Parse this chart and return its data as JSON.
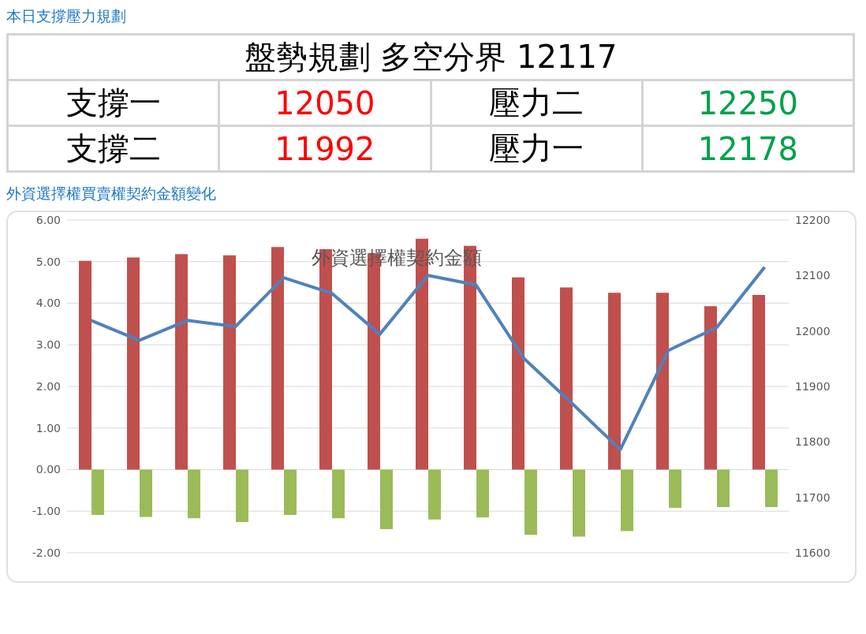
{
  "chart_data": [
    {
      "type": "other",
      "title": "本日支撐壓力規劃",
      "annotations": [
        "盤勢規劃 多空分界 12117",
        "支撐一",
        "12050",
        "壓力二",
        "12250",
        "支撐二",
        "11992",
        "壓力一",
        "12178"
      ],
      "colors": [
        "#000000",
        "#000000",
        "#ff0000",
        "#000000",
        "#00a14b",
        "#000000",
        "#ff0000",
        "#000000",
        "#00a14b"
      ]
    },
    {
      "type": "bar",
      "title": "外資選擇權買賣權契約金額變化",
      "subtitle": "外資選擇權契約金額",
      "categories": [
        null,
        null,
        null,
        null,
        null,
        null,
        null,
        null,
        null,
        null,
        null,
        null,
        null,
        null,
        null
      ],
      "series": [
        {
          "type": "bar",
          "color": "#c0504d",
          "values": [
            5.02,
            5.1,
            5.18,
            5.15,
            5.35,
            5.3,
            5.2,
            5.55,
            5.38,
            4.62,
            4.38,
            4.25,
            4.25,
            3.93,
            4.2
          ]
        },
        {
          "type": "bar",
          "color": "#9bbb59",
          "values": [
            -1.09,
            -1.14,
            -1.17,
            -1.26,
            -1.09,
            -1.17,
            -1.43,
            -1.2,
            -1.15,
            -1.57,
            -1.61,
            -1.48,
            -0.92,
            -0.9,
            -0.9
          ]
        },
        {
          "type": "line",
          "axis": "y2",
          "color": "#4f81bd",
          "values": [
            12019,
            11983,
            12019,
            12008,
            12096,
            12068,
            11994,
            12100,
            12083,
            11950,
            11869,
            11786,
            11965,
            12006,
            12115
          ]
        }
      ],
      "ylim": [
        -2,
        6
      ],
      "yticks": [
        {
          "value": -2,
          "label": "-2.00"
        },
        {
          "value": -1,
          "label": "-1.00"
        },
        {
          "value": 0,
          "label": "0.00"
        },
        {
          "value": 1,
          "label": "1.00"
        },
        {
          "value": 2,
          "label": "2.00"
        },
        {
          "value": 3,
          "label": "3.00"
        },
        {
          "value": 4,
          "label": "4.00"
        },
        {
          "value": 5,
          "label": "5.00"
        },
        {
          "value": 6,
          "label": "6.00"
        }
      ],
      "y2lim": [
        11600,
        12200
      ],
      "y2ticks": [
        11600,
        11700,
        11800,
        11900,
        12000,
        12100,
        12200
      ],
      "grid": "y",
      "legend": false,
      "marker": "none",
      "line_style": "solid"
    }
  ]
}
